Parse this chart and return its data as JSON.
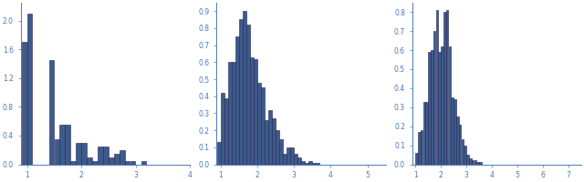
{
  "plot1": {
    "bar_lefts": [
      0.95,
      1.05,
      1.45,
      1.55,
      1.65,
      1.75,
      1.85,
      1.95,
      2.05,
      2.15,
      2.25,
      2.35,
      2.45,
      2.55,
      2.65,
      2.75,
      2.85,
      2.95,
      3.15
    ],
    "bar_heights": [
      1.7,
      2.1,
      1.45,
      0.35,
      0.55,
      0.55,
      0.05,
      0.3,
      0.3,
      0.1,
      0.05,
      0.25,
      0.25,
      0.1,
      0.15,
      0.2,
      0.05,
      0.05,
      0.05
    ],
    "xlim": [
      0.88,
      4.0
    ],
    "ylim": [
      0,
      2.25
    ],
    "yticks": [
      0,
      0.4,
      0.8,
      1.2,
      1.6,
      2.0
    ],
    "xticks": [
      1,
      2,
      3,
      4
    ],
    "bar_width": 0.095
  },
  "plot2": {
    "bar_lefts": [
      0.95,
      1.05,
      1.15,
      1.25,
      1.35,
      1.45,
      1.55,
      1.65,
      1.75,
      1.85,
      1.95,
      2.05,
      2.15,
      2.25,
      2.35,
      2.45,
      2.55,
      2.65,
      2.75,
      2.85,
      2.95,
      3.05,
      3.15,
      3.25,
      3.35,
      3.45,
      3.55,
      3.65,
      3.75
    ],
    "bar_heights": [
      0.13,
      0.42,
      0.39,
      0.6,
      0.6,
      0.75,
      0.85,
      0.9,
      0.82,
      0.63,
      0.62,
      0.48,
      0.45,
      0.26,
      0.32,
      0.27,
      0.2,
      0.15,
      0.06,
      0.1,
      0.1,
      0.06,
      0.04,
      0.02,
      0.01,
      0.02,
      0.01,
      0.01,
      0.0
    ],
    "xlim": [
      0.88,
      5.5
    ],
    "ylim": [
      0,
      0.95
    ],
    "yticks": [
      0,
      0.1,
      0.2,
      0.3,
      0.4,
      0.5,
      0.6,
      0.7,
      0.8,
      0.9
    ],
    "xticks": [
      1,
      2,
      3,
      4,
      5
    ],
    "bar_width": 0.095
  },
  "plot3": {
    "bar_lefts": [
      1.05,
      1.15,
      1.25,
      1.35,
      1.45,
      1.55,
      1.65,
      1.75,
      1.85,
      1.95,
      2.05,
      2.15,
      2.25,
      2.35,
      2.45,
      2.55,
      2.65,
      2.75,
      2.85,
      2.95,
      3.05,
      3.15,
      3.25,
      3.35,
      3.45,
      3.55,
      3.65,
      3.75,
      3.85,
      3.95,
      4.05,
      4.15,
      4.25,
      4.35
    ],
    "bar_heights": [
      0.06,
      0.17,
      0.18,
      0.33,
      0.33,
      0.59,
      0.6,
      0.7,
      0.81,
      0.59,
      0.62,
      0.8,
      0.81,
      0.62,
      0.35,
      0.34,
      0.25,
      0.21,
      0.13,
      0.1,
      0.05,
      0.03,
      0.02,
      0.02,
      0.01,
      0.01,
      0.0,
      0.0,
      0.0,
      0.0,
      0.0,
      0.0,
      0.0,
      0.0
    ],
    "xlim": [
      0.88,
      7.5
    ],
    "ylim": [
      0,
      0.85
    ],
    "yticks": [
      0,
      0.1,
      0.2,
      0.3,
      0.4,
      0.5,
      0.6,
      0.7,
      0.8
    ],
    "xticks": [
      1,
      2,
      3,
      4,
      5,
      6,
      7
    ],
    "bar_width": 0.095
  },
  "bar_color": "#3D5A8A",
  "bar_edge_color": "#222255",
  "figure_bg": "#ffffff",
  "tick_color": "#4a7ab5",
  "spine_color": "#4a7ab5",
  "tick_fontsize": 5.5
}
